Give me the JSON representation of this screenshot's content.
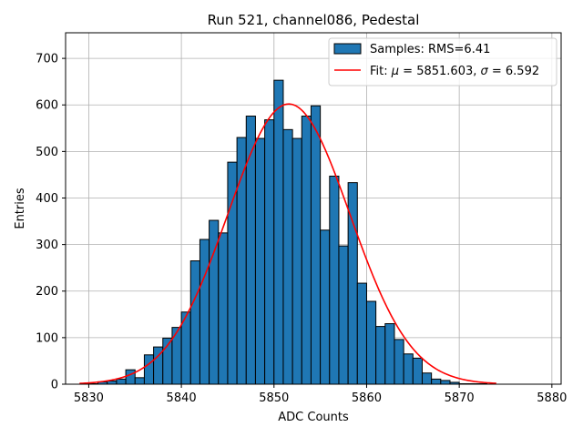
{
  "chart_data": {
    "type": "bar",
    "title": "Run 521, channel086, Pedestal",
    "xlabel": "ADC Counts",
    "ylabel": "Entries",
    "xlim": [
      5827.5,
      5881
    ],
    "ylim": [
      0,
      755
    ],
    "grid": true,
    "legend_position": "top-right",
    "x_ticks": [
      5830,
      5840,
      5850,
      5860,
      5870,
      5880
    ],
    "y_ticks": [
      0,
      100,
      200,
      300,
      400,
      500,
      600,
      700
    ],
    "histogram": {
      "name": "Samples: RMS=6.41",
      "bin_start": 5829,
      "bin_width": 1,
      "counts": [
        0,
        1,
        5,
        7,
        11,
        31,
        14,
        63,
        80,
        99,
        122,
        155,
        265,
        311,
        352,
        325,
        477,
        530,
        576,
        528,
        568,
        653,
        547,
        528,
        576,
        598,
        331,
        447,
        297,
        433,
        217,
        178,
        124,
        130,
        96,
        65,
        56,
        24,
        11,
        8,
        4,
        1,
        1,
        1,
        0
      ],
      "color": "#1f77b4",
      "edgecolor": "#000000"
    },
    "fit": {
      "name": "Fit: μ = 5851.603, σ = 6.592",
      "legend_prefix": "Fit: ",
      "mu_symbol": "μ",
      "sigma_symbol": "σ",
      "mu": 5851.603,
      "sigma": 6.592,
      "mu_value_text": " = 5851.603, ",
      "sigma_value_text": " = 6.592",
      "amplitude": 602,
      "x_range": [
        5829,
        5874
      ],
      "color": "#ff0000"
    }
  }
}
